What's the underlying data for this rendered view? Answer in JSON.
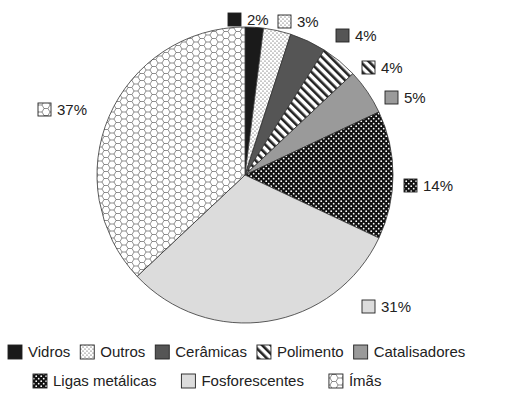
{
  "chart_data": {
    "type": "pie",
    "categories": [
      "Vidros",
      "Outros",
      "Cerâmicas",
      "Polimento",
      "Catalisadores",
      "Ligas metálicas",
      "Fosforescentes",
      "Ímãs"
    ],
    "values": [
      2,
      3,
      4,
      4,
      5,
      14,
      31,
      37
    ],
    "value_labels": [
      "2%",
      "3%",
      "4%",
      "4%",
      "5%",
      "14%",
      "31%",
      "37%"
    ],
    "colors": [
      "#1a1a1a",
      "#ffffff",
      "#555555",
      "#ffffff",
      "#9a9a9a",
      "#111111",
      "#dcdcdc",
      "#ffffff"
    ],
    "data_labels": true,
    "legend": "bottom"
  }
}
